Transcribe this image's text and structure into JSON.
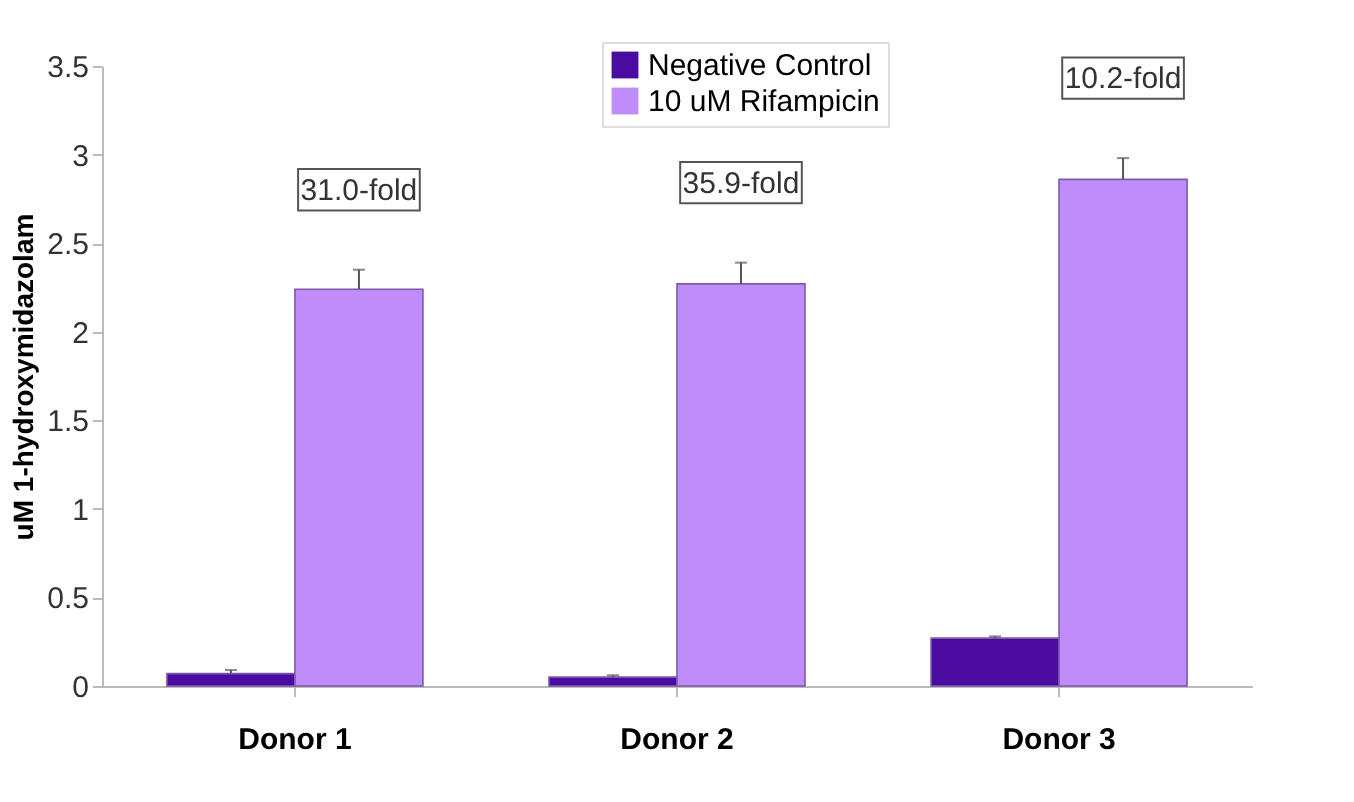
{
  "chart_data": {
    "type": "bar",
    "ylabel": "uM 1-hydroxymidazolam",
    "categories": [
      "Donor 1",
      "Donor 2",
      "Donor 3"
    ],
    "series": [
      {
        "name": "Negative Control",
        "color": "#4b0aa0",
        "values": [
          0.07,
          0.05,
          0.27
        ],
        "errors": [
          0.02,
          0.01,
          0.01
        ]
      },
      {
        "name": "10 uM Rifampicin",
        "color": "#bf8cfa",
        "values": [
          2.24,
          2.27,
          2.86
        ],
        "errors": [
          0.11,
          0.12,
          0.12
        ]
      }
    ],
    "ylim": [
      0,
      3.5
    ],
    "yticks": [
      0,
      0.5,
      1,
      1.5,
      2,
      2.5,
      3,
      3.5
    ],
    "grid": false,
    "legend": "top",
    "annotations": [
      "31.0-fold",
      "35.9-fold",
      "10.2-fold"
    ]
  }
}
